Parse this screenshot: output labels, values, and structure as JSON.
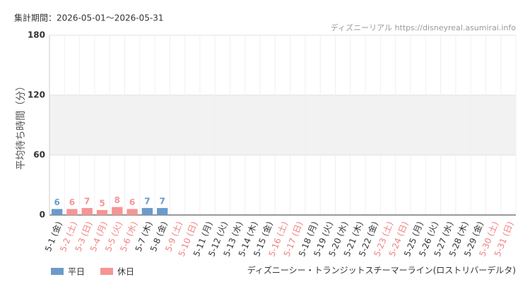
{
  "chart_data": {
    "type": "bar",
    "header": "集計期間：2026-05-01～2026-05-31",
    "source": "ディズニーリアル https://disneyreal.asumirai.info",
    "ylabel": "平均待ち時間（分）",
    "footer": "ディズニーシー・トランジットスチーマーライン(ロストリバーデルタ)",
    "categories": [
      "5-1 (金)",
      "5-2 (土)",
      "5-3 (日)",
      "5-4 (月)",
      "5-5 (火)",
      "5-6 (水)",
      "5-7 (木)",
      "5-8 (金)",
      "5-9 (土)",
      "5-10 (日)",
      "5-11 (月)",
      "5-12 (火)",
      "5-13 (水)",
      "5-14 (木)",
      "5-15 (金)",
      "5-16 (土)",
      "5-17 (日)",
      "5-18 (月)",
      "5-19 (火)",
      "5-20 (水)",
      "5-21 (木)",
      "5-22 (金)",
      "5-23 (土)",
      "5-24 (日)",
      "5-25 (月)",
      "5-26 (火)",
      "5-27 (水)",
      "5-28 (木)",
      "5-29 (金)",
      "5-30 (土)",
      "5-31 (日)"
    ],
    "category_colors": [
      "#333333",
      "#f08080",
      "#f08080",
      "#f08080",
      "#f08080",
      "#f08080",
      "#333333",
      "#333333",
      "#f08080",
      "#f08080",
      "#333333",
      "#333333",
      "#333333",
      "#333333",
      "#333333",
      "#f08080",
      "#f08080",
      "#333333",
      "#333333",
      "#333333",
      "#333333",
      "#333333",
      "#f08080",
      "#f08080",
      "#333333",
      "#333333",
      "#333333",
      "#333333",
      "#333333",
      "#f08080",
      "#f08080"
    ],
    "series": [
      {
        "name": "平日",
        "color": "#6b9bcb",
        "values": [
          6,
          null,
          null,
          null,
          null,
          null,
          7,
          7,
          null,
          null,
          null,
          null,
          null,
          null,
          null,
          null,
          null,
          null,
          null,
          null,
          null,
          null,
          null,
          null,
          null,
          null,
          null,
          null,
          null,
          null,
          null
        ]
      },
      {
        "name": "休日",
        "color": "#f59595",
        "values": [
          null,
          6,
          7,
          5,
          8,
          6,
          null,
          null,
          null,
          null,
          null,
          null,
          null,
          null,
          null,
          null,
          null,
          null,
          null,
          null,
          null,
          null,
          null,
          null,
          null,
          null,
          null,
          null,
          null,
          null,
          null
        ]
      }
    ],
    "ylim": [
      0,
      180
    ],
    "yticks": [
      0,
      60,
      120,
      180
    ],
    "grid": true
  }
}
